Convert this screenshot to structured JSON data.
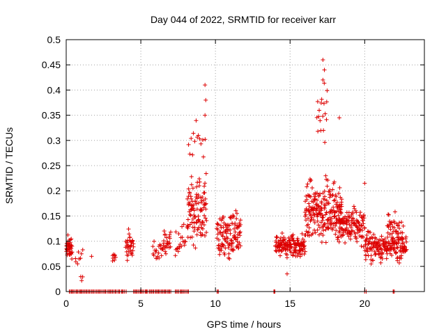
{
  "chart_data": {
    "type": "scatter",
    "title": "Day 044 of 2022, SRMTID for receiver karr",
    "xlabel": "GPS time / hours",
    "ylabel": "SRMTID / TECUs",
    "xlim": [
      0,
      24
    ],
    "ylim": [
      0,
      0.5
    ],
    "x_ticks": [
      0,
      5,
      10,
      15,
      20
    ],
    "x_tick_labels": [
      "0",
      "5",
      "10",
      "15",
      "20"
    ],
    "y_ticks": [
      0,
      0.05,
      0.1,
      0.15,
      0.2,
      0.25,
      0.3,
      0.35,
      0.4,
      0.45,
      0.5
    ],
    "y_tick_labels": [
      "0",
      "0.05",
      "0.1",
      "0.15",
      "0.2",
      "0.25",
      "0.3",
      "0.35",
      "0.4",
      "0.45",
      "0.5"
    ],
    "grid": true,
    "marker": "+",
    "color": "#dd0000",
    "clusters": [
      {
        "name": "zero-baseline-1",
        "x_start": 0.2,
        "x_end": 1.6,
        "y_center": 0.0,
        "spread": 0.0,
        "count": 20
      },
      {
        "name": "zero-baseline-2",
        "x_start": 1.7,
        "x_end": 4.0,
        "y_center": 0.0,
        "spread": 0.0,
        "count": 30
      },
      {
        "name": "zero-baseline-3",
        "x_start": 4.5,
        "x_end": 6.4,
        "y_center": 0.0,
        "spread": 0.0,
        "count": 26
      },
      {
        "name": "zero-baseline-4",
        "x_start": 6.5,
        "x_end": 7.0,
        "y_center": 0.0,
        "spread": 0.0,
        "count": 8
      },
      {
        "name": "zero-baseline-5",
        "x_start": 7.3,
        "x_end": 8.2,
        "y_center": 0.0,
        "spread": 0.0,
        "count": 12
      },
      {
        "name": "zero-baseline-6",
        "x_start": 10.1,
        "x_end": 10.2,
        "y_center": 0.0,
        "spread": 0.0,
        "count": 3
      },
      {
        "name": "zero-baseline-7",
        "x_start": 13.9,
        "x_end": 14.0,
        "y_center": 0.0,
        "spread": 0.0,
        "count": 3
      },
      {
        "name": "zero-baseline-8",
        "x_start": 20.0,
        "x_end": 20.1,
        "y_center": 0.0,
        "spread": 0.0,
        "count": 2
      },
      {
        "name": "zero-baseline-9",
        "x_start": 21.9,
        "x_end": 22.0,
        "y_center": 0.0,
        "spread": 0.0,
        "count": 3
      },
      {
        "name": "early-burst",
        "x_start": 0.0,
        "x_end": 0.4,
        "y_center": 0.085,
        "spread": 0.025,
        "count": 40
      },
      {
        "name": "hour1",
        "x_start": 0.6,
        "x_end": 1.1,
        "y_center": 0.07,
        "spread": 0.02,
        "count": 8
      },
      {
        "name": "hour1-low",
        "x_start": 1.0,
        "x_end": 1.1,
        "y_center": 0.025,
        "spread": 0.01,
        "count": 3
      },
      {
        "name": "hour3",
        "x_start": 3.1,
        "x_end": 3.3,
        "y_center": 0.07,
        "spread": 0.015,
        "count": 8
      },
      {
        "name": "hour4",
        "x_start": 4.0,
        "x_end": 4.5,
        "y_center": 0.09,
        "spread": 0.025,
        "count": 35
      },
      {
        "name": "hour6",
        "x_start": 5.8,
        "x_end": 6.5,
        "y_center": 0.08,
        "spread": 0.02,
        "count": 20
      },
      {
        "name": "hour6-7",
        "x_start": 6.5,
        "x_end": 7.0,
        "y_center": 0.1,
        "spread": 0.025,
        "count": 25
      },
      {
        "name": "hour7-8",
        "x_start": 7.3,
        "x_end": 8.0,
        "y_center": 0.105,
        "spread": 0.025,
        "count": 20
      },
      {
        "name": "peak-9h",
        "x_start": 8.1,
        "x_end": 9.4,
        "y_center": 0.16,
        "spread": 0.07,
        "count": 110
      },
      {
        "name": "peak-9h-top",
        "x_start": 8.2,
        "x_end": 9.3,
        "y_center": 0.3,
        "spread": 0.06,
        "count": 14
      },
      {
        "name": "hour10-12",
        "x_start": 10.1,
        "x_end": 11.7,
        "y_center": 0.11,
        "spread": 0.045,
        "count": 120
      },
      {
        "name": "hour14-16",
        "x_start": 14.0,
        "x_end": 16.0,
        "y_center": 0.09,
        "spread": 0.025,
        "count": 150
      },
      {
        "name": "peak-17h",
        "x_start": 16.0,
        "x_end": 18.5,
        "y_center": 0.16,
        "spread": 0.06,
        "count": 230
      },
      {
        "name": "peak-17h-top",
        "x_start": 16.8,
        "x_end": 17.5,
        "y_center": 0.35,
        "spread": 0.06,
        "count": 18
      },
      {
        "name": "hour18-20",
        "x_start": 18.3,
        "x_end": 20.0,
        "y_center": 0.13,
        "spread": 0.035,
        "count": 120
      },
      {
        "name": "hour20-23",
        "x_start": 20.0,
        "x_end": 22.8,
        "y_center": 0.09,
        "spread": 0.03,
        "count": 200
      },
      {
        "name": "hour22-spikes",
        "x_start": 21.5,
        "x_end": 22.6,
        "y_center": 0.13,
        "spread": 0.03,
        "count": 30
      }
    ],
    "outliers": [
      {
        "x": 9.3,
        "y": 0.41
      },
      {
        "x": 9.35,
        "y": 0.38
      },
      {
        "x": 9.3,
        "y": 0.35
      },
      {
        "x": 17.2,
        "y": 0.46
      },
      {
        "x": 17.3,
        "y": 0.44
      },
      {
        "x": 17.2,
        "y": 0.42
      },
      {
        "x": 18.3,
        "y": 0.345
      },
      {
        "x": 1.7,
        "y": 0.07
      },
      {
        "x": 20.0,
        "y": 0.215
      },
      {
        "x": 14.8,
        "y": 0.035
      }
    ]
  }
}
